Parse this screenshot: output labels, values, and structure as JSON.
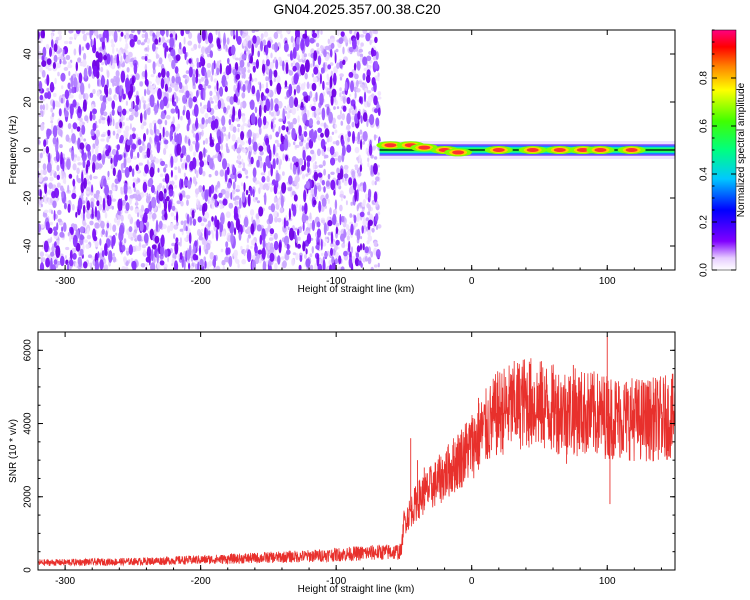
{
  "title": "GN04.2025.357.00.38.C20",
  "chart_data": [
    {
      "type": "heatmap",
      "xlabel": "Height of straight line (km)",
      "ylabel": "Frequency (Hz)",
      "xlim": [
        -320,
        150
      ],
      "ylim": [
        -50,
        50
      ],
      "xticks": [
        -300,
        -200,
        -100,
        0,
        100
      ],
      "yticks": [
        -40,
        -20,
        0,
        20,
        40
      ],
      "noise_region": [
        -320,
        -68
      ],
      "signal_band": {
        "x_start": -68,
        "x_end": 150,
        "center_frequency": 0,
        "half_width": 3
      },
      "peaks": [
        {
          "x": -60,
          "y": 2,
          "level": 1.0
        },
        {
          "x": -45,
          "y": 2,
          "level": 1.0
        },
        {
          "x": -35,
          "y": 1,
          "level": 0.95
        },
        {
          "x": -20,
          "y": 0,
          "level": 0.9
        },
        {
          "x": -10,
          "y": -1,
          "level": 0.9
        },
        {
          "x": 20,
          "y": 0,
          "level": 0.95
        },
        {
          "x": 45,
          "y": 0,
          "level": 0.95
        },
        {
          "x": 65,
          "y": 0,
          "level": 0.95
        },
        {
          "x": 82,
          "y": 0,
          "level": 1.0
        },
        {
          "x": 95,
          "y": 0,
          "level": 0.95
        },
        {
          "x": 118,
          "y": 0,
          "level": 0.95
        }
      ]
    },
    {
      "type": "line",
      "xlabel": "Height of straight line (km)",
      "ylabel": "SNR (10 * v/v)",
      "xlim": [
        -320,
        150
      ],
      "ylim": [
        0,
        6500
      ],
      "xticks": [
        -300,
        -200,
        -100,
        0,
        100
      ],
      "yticks": [
        0,
        2000,
        4000,
        6000
      ],
      "color": "#e8302c",
      "envelope": [
        {
          "x": -320,
          "y": 200
        },
        {
          "x": -250,
          "y": 230
        },
        {
          "x": -180,
          "y": 300
        },
        {
          "x": -120,
          "y": 380
        },
        {
          "x": -70,
          "y": 480
        },
        {
          "x": -52,
          "y": 500
        },
        {
          "x": -50,
          "y": 1300
        },
        {
          "x": -40,
          "y": 1900
        },
        {
          "x": -20,
          "y": 2600
        },
        {
          "x": 0,
          "y": 3400
        },
        {
          "x": 20,
          "y": 4300
        },
        {
          "x": 40,
          "y": 4600
        },
        {
          "x": 60,
          "y": 4400
        },
        {
          "x": 80,
          "y": 4300
        },
        {
          "x": 100,
          "y": 4200
        },
        {
          "x": 130,
          "y": 4100
        },
        {
          "x": 150,
          "y": 4200
        }
      ],
      "spikes": [
        {
          "x": -45,
          "y": 3600
        },
        {
          "x": -40,
          "y": 3000
        },
        {
          "x": -35,
          "y": 2800
        },
        {
          "x": 5,
          "y": 4700
        },
        {
          "x": 35,
          "y": 5300
        },
        {
          "x": 75,
          "y": 5600
        },
        {
          "x": 100,
          "y": 6400
        },
        {
          "x": 102,
          "y": 1800
        },
        {
          "x": 70,
          "y": 2900
        },
        {
          "x": 140,
          "y": 3200
        }
      ]
    }
  ],
  "colorbar": {
    "label": "Normalized spectral amplitude",
    "range": [
      0,
      1
    ],
    "ticks": [
      "0.0",
      "0.2",
      "0.4",
      "0.6",
      "0.8"
    ],
    "colors": [
      "#ffffff",
      "#e6ccff",
      "#8000ff",
      "#0000ff",
      "#00c8ff",
      "#00ff80",
      "#40ff00",
      "#ffff00",
      "#ff8000",
      "#ff0000",
      "#ff0080"
    ]
  }
}
